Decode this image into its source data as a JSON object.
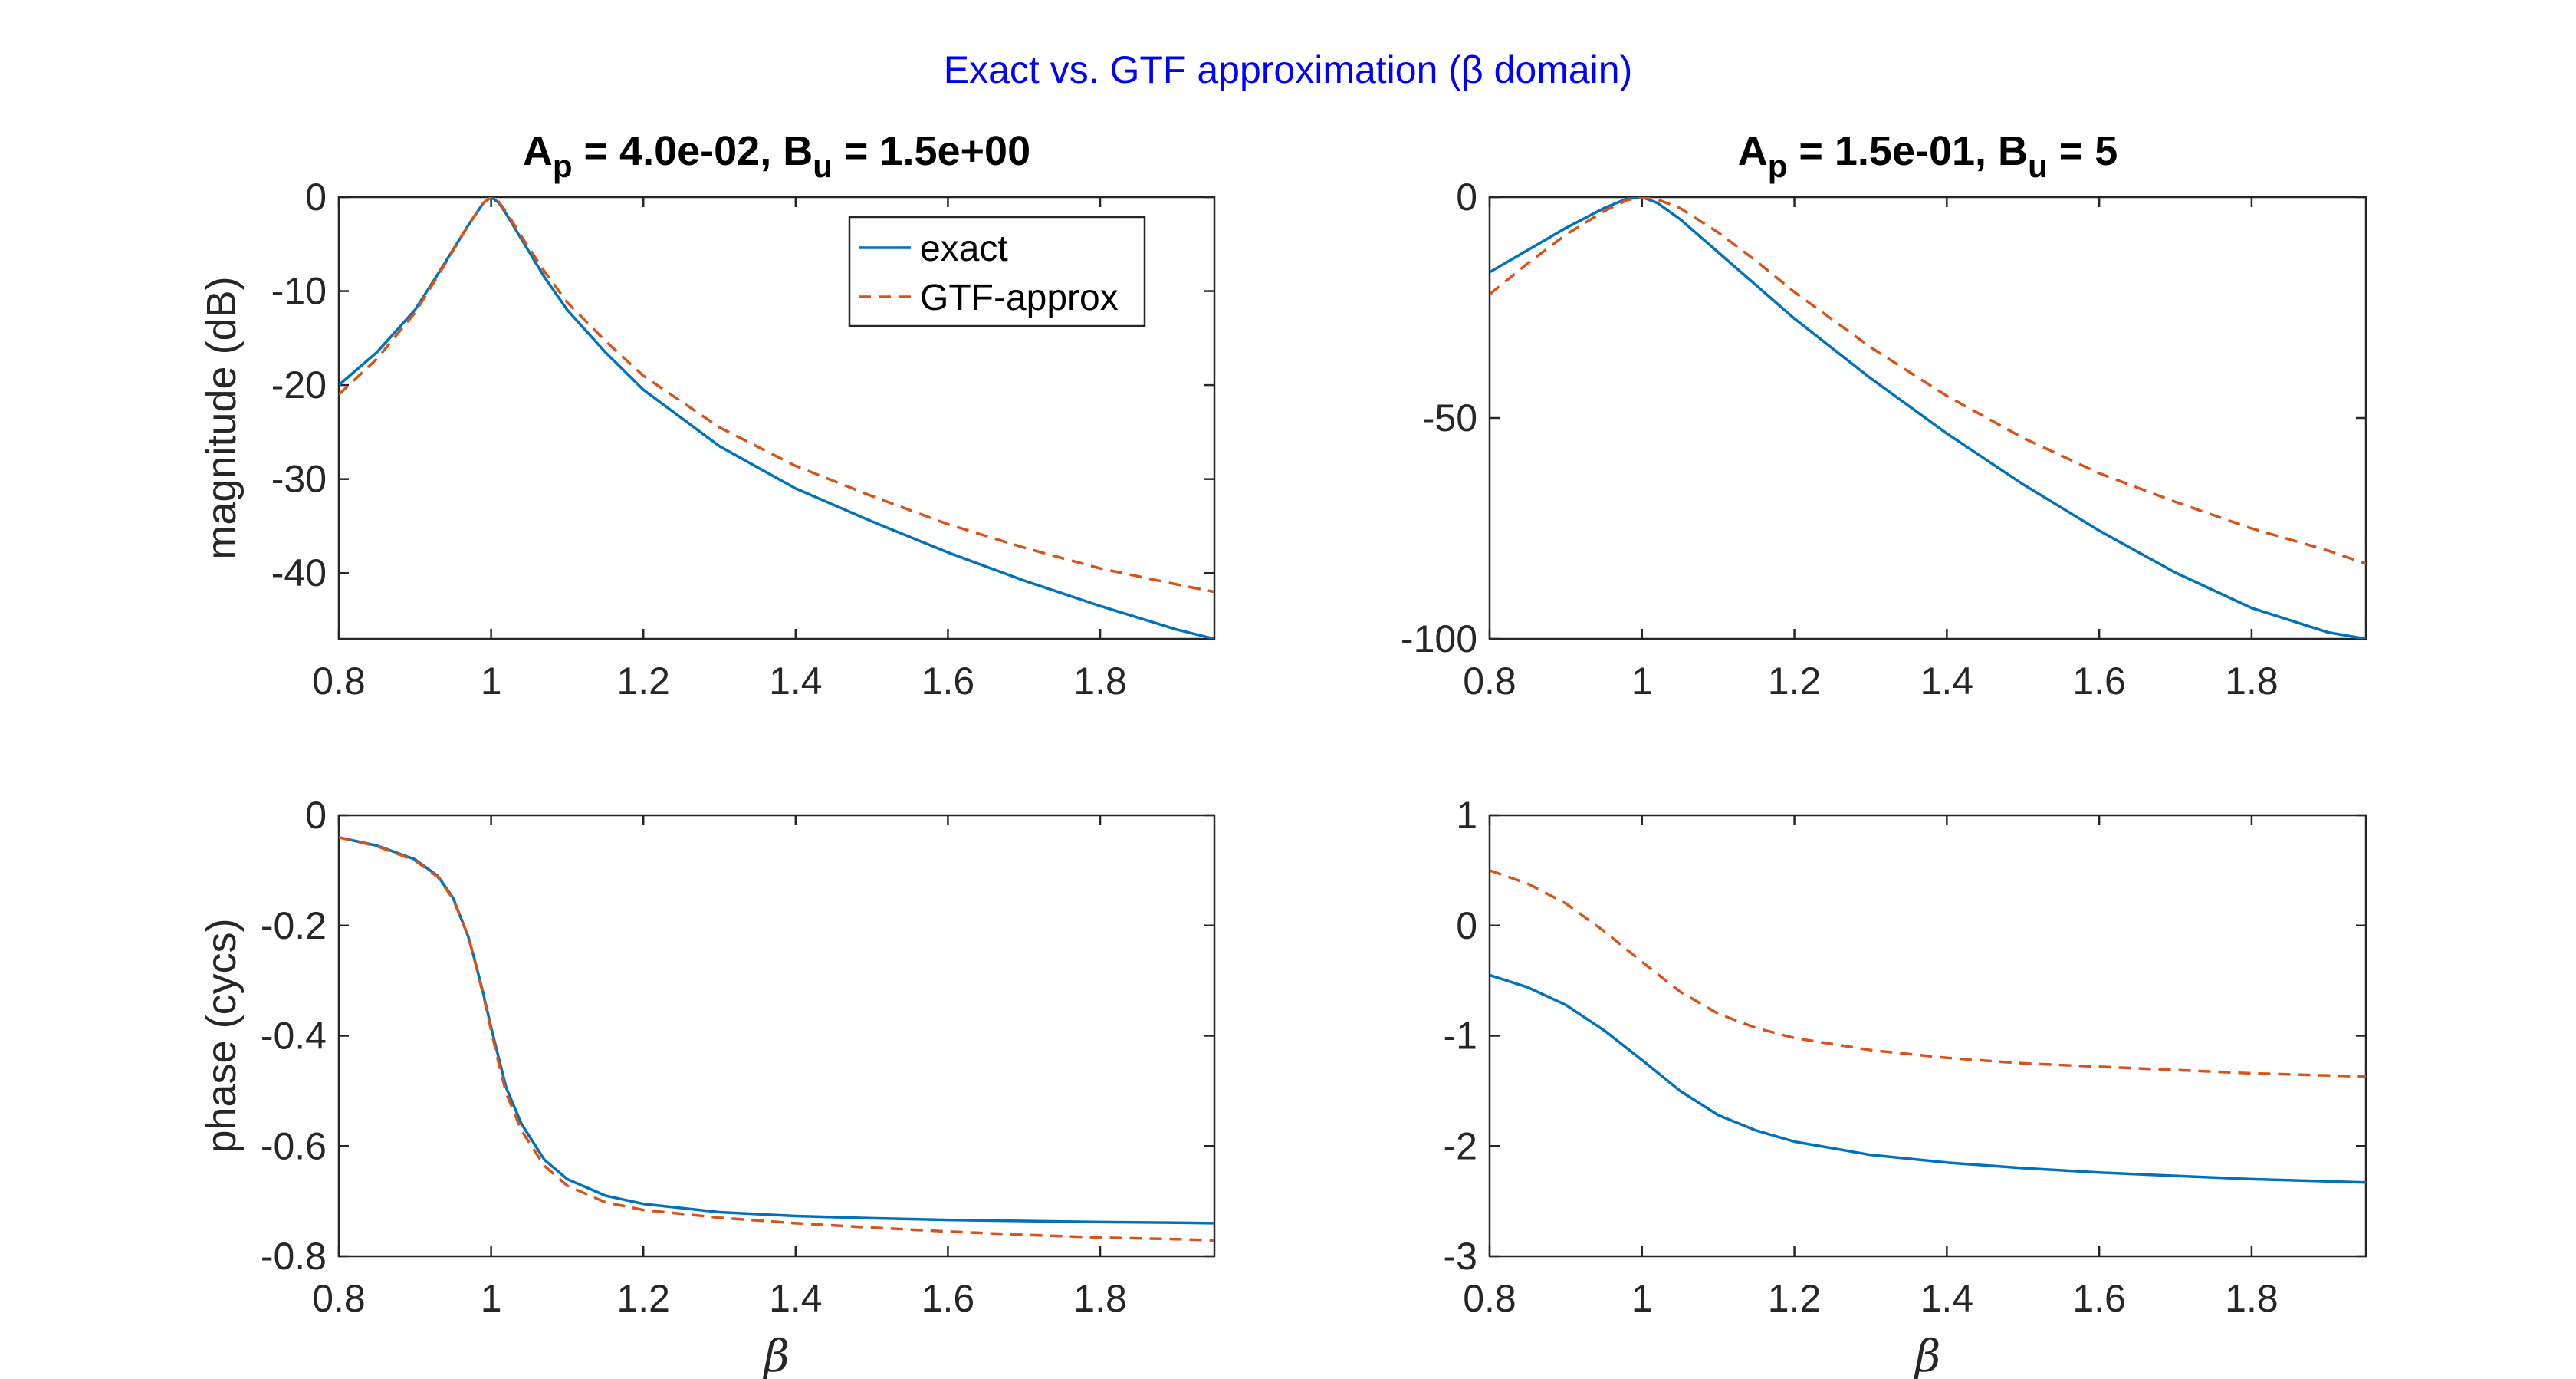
{
  "figure": {
    "suptitle": "Exact vs. GTF approximation (β domain)",
    "suptitle_color": "#0000ff"
  },
  "colors": {
    "exact": "#0072bd",
    "approx": "#d95319",
    "axis": "#262626"
  },
  "legend": {
    "exact_label": "exact",
    "approx_label": "GTF-approx"
  },
  "chart_data": [
    {
      "id": "left-magnitude",
      "type": "line",
      "title_prefix": "A",
      "title_sub1": "p",
      "title_mid": " = 4.0e-02, B",
      "title_sub2": "u",
      "title_suffix": " = 1.5e+00",
      "xlabel": "",
      "ylabel": "magnitude (dB)",
      "xlim": [
        0.8,
        1.95
      ],
      "ylim": [
        -47,
        0
      ],
      "xticks": [
        0.8,
        1,
        1.2,
        1.4,
        1.6,
        1.8
      ],
      "xticklabels": [
        "0.8",
        "1",
        "1.2",
        "1.4",
        "1.6",
        "1.8"
      ],
      "yticks": [
        0,
        -10,
        -20,
        -30,
        -40
      ],
      "yticklabels": [
        "0",
        "-10",
        "-20",
        "-30",
        "-40"
      ],
      "legend_position": "top-right",
      "series": [
        {
          "name": "exact",
          "style": "solid",
          "x": [
            0.8,
            0.85,
            0.9,
            0.93,
            0.95,
            0.97,
            0.98,
            0.99,
            1.0,
            1.01,
            1.02,
            1.04,
            1.07,
            1.1,
            1.15,
            1.2,
            1.3,
            1.4,
            1.5,
            1.6,
            1.7,
            1.8,
            1.9,
            1.95
          ],
          "y": [
            -20,
            -16.5,
            -12,
            -8.2,
            -5.6,
            -3.0,
            -1.8,
            -0.6,
            0,
            -0.6,
            -1.8,
            -4.5,
            -8.5,
            -12,
            -16.5,
            -20.5,
            -26.5,
            -31,
            -34.5,
            -37.8,
            -40.8,
            -43.5,
            -46,
            -47
          ]
        },
        {
          "name": "GTF-approx",
          "style": "dashed",
          "x": [
            0.8,
            0.85,
            0.9,
            0.93,
            0.95,
            0.97,
            0.98,
            0.99,
            1.0,
            1.01,
            1.02,
            1.04,
            1.07,
            1.1,
            1.15,
            1.2,
            1.3,
            1.4,
            1.5,
            1.6,
            1.7,
            1.8,
            1.9,
            1.95
          ],
          "y": [
            -21,
            -17.2,
            -12.3,
            -8.4,
            -5.7,
            -3.0,
            -1.8,
            -0.6,
            0,
            -0.5,
            -1.6,
            -4.2,
            -7.9,
            -11.2,
            -15.3,
            -19,
            -24.5,
            -28.6,
            -31.8,
            -34.8,
            -37.3,
            -39.5,
            -41.2,
            -42
          ]
        }
      ]
    },
    {
      "id": "right-magnitude",
      "type": "line",
      "title_prefix": "A",
      "title_sub1": "p",
      "title_mid": " = 1.5e-01, B",
      "title_sub2": "u",
      "title_suffix": " = 5",
      "xlabel": "",
      "ylabel": "",
      "xlim": [
        0.8,
        1.95
      ],
      "ylim": [
        -100,
        0
      ],
      "xticks": [
        0.8,
        1,
        1.2,
        1.4,
        1.6,
        1.8
      ],
      "xticklabels": [
        "0.8",
        "1",
        "1.2",
        "1.4",
        "1.6",
        "1.8"
      ],
      "yticks": [
        0,
        -50,
        -100
      ],
      "yticklabels": [
        "0",
        "-50",
        "-100"
      ],
      "series": [
        {
          "name": "exact",
          "style": "solid",
          "x": [
            0.8,
            0.85,
            0.9,
            0.95,
            0.98,
            1.0,
            1.02,
            1.05,
            1.1,
            1.15,
            1.2,
            1.3,
            1.4,
            1.5,
            1.6,
            1.7,
            1.8,
            1.9,
            1.95
          ],
          "y": [
            -17,
            -12,
            -7,
            -2.5,
            -0.4,
            0,
            -1.3,
            -5,
            -12.5,
            -20,
            -27.5,
            -41,
            -53.5,
            -65,
            -75.5,
            -85,
            -93,
            -98.5,
            -100
          ]
        },
        {
          "name": "GTF-approx",
          "style": "dashed",
          "x": [
            0.8,
            0.85,
            0.9,
            0.95,
            0.98,
            1.0,
            1.02,
            1.05,
            1.1,
            1.15,
            1.2,
            1.3,
            1.4,
            1.5,
            1.6,
            1.7,
            1.8,
            1.9,
            1.95
          ],
          "y": [
            -22,
            -15,
            -8.5,
            -3.2,
            -0.7,
            0,
            -0.5,
            -2.5,
            -8,
            -14.5,
            -21.5,
            -34,
            -45,
            -54.5,
            -62.5,
            -69,
            -75,
            -80,
            -83
          ]
        }
      ]
    },
    {
      "id": "left-phase",
      "type": "line",
      "xlabel": "β",
      "ylabel": "phase (cycs)",
      "xlim": [
        0.8,
        1.95
      ],
      "ylim": [
        -0.8,
        0
      ],
      "xticks": [
        0.8,
        1,
        1.2,
        1.4,
        1.6,
        1.8
      ],
      "xticklabels": [
        "0.8",
        "1",
        "1.2",
        "1.4",
        "1.6",
        "1.8"
      ],
      "yticks": [
        0,
        -0.2,
        -0.4,
        -0.6,
        -0.8
      ],
      "yticklabels": [
        "0",
        "-0.2",
        "-0.4",
        "-0.6",
        "-0.8"
      ],
      "series": [
        {
          "name": "exact",
          "style": "solid",
          "x": [
            0.8,
            0.85,
            0.9,
            0.93,
            0.95,
            0.97,
            0.98,
            0.99,
            1.0,
            1.01,
            1.02,
            1.04,
            1.07,
            1.1,
            1.15,
            1.2,
            1.3,
            1.4,
            1.5,
            1.6,
            1.7,
            1.8,
            1.9,
            1.95
          ],
          "y": [
            -0.04,
            -0.055,
            -0.08,
            -0.11,
            -0.15,
            -0.22,
            -0.27,
            -0.325,
            -0.385,
            -0.44,
            -0.495,
            -0.56,
            -0.625,
            -0.66,
            -0.69,
            -0.705,
            -0.72,
            -0.727,
            -0.731,
            -0.734,
            -0.736,
            -0.738,
            -0.739,
            -0.74
          ]
        },
        {
          "name": "GTF-approx",
          "style": "dashed",
          "x": [
            0.8,
            0.85,
            0.9,
            0.93,
            0.95,
            0.97,
            0.98,
            0.99,
            1.0,
            1.01,
            1.02,
            1.04,
            1.07,
            1.1,
            1.15,
            1.2,
            1.3,
            1.4,
            1.5,
            1.6,
            1.7,
            1.8,
            1.9,
            1.95
          ],
          "y": [
            -0.04,
            -0.056,
            -0.082,
            -0.112,
            -0.152,
            -0.22,
            -0.272,
            -0.328,
            -0.39,
            -0.45,
            -0.505,
            -0.572,
            -0.636,
            -0.672,
            -0.702,
            -0.716,
            -0.73,
            -0.74,
            -0.748,
            -0.755,
            -0.761,
            -0.766,
            -0.769,
            -0.771
          ]
        }
      ]
    },
    {
      "id": "right-phase",
      "type": "line",
      "xlabel": "β",
      "ylabel": "",
      "xlim": [
        0.8,
        1.95
      ],
      "ylim": [
        -3,
        1
      ],
      "xticks": [
        0.8,
        1,
        1.2,
        1.4,
        1.6,
        1.8
      ],
      "xticklabels": [
        "0.8",
        "1",
        "1.2",
        "1.4",
        "1.6",
        "1.8"
      ],
      "yticks": [
        1,
        0,
        -1,
        -2,
        -3
      ],
      "yticklabels": [
        "1",
        "0",
        "-1",
        "-2",
        "-3"
      ],
      "series": [
        {
          "name": "exact",
          "style": "solid",
          "x": [
            0.8,
            0.85,
            0.9,
            0.95,
            1.0,
            1.05,
            1.1,
            1.15,
            1.2,
            1.3,
            1.4,
            1.5,
            1.6,
            1.7,
            1.8,
            1.9,
            1.95
          ],
          "y": [
            -0.45,
            -0.56,
            -0.72,
            -0.95,
            -1.22,
            -1.5,
            -1.72,
            -1.86,
            -1.96,
            -2.08,
            -2.15,
            -2.2,
            -2.24,
            -2.27,
            -2.3,
            -2.32,
            -2.33
          ]
        },
        {
          "name": "GTF-approx",
          "style": "dashed",
          "x": [
            0.8,
            0.85,
            0.9,
            0.95,
            1.0,
            1.05,
            1.1,
            1.15,
            1.2,
            1.3,
            1.4,
            1.5,
            1.6,
            1.7,
            1.8,
            1.9,
            1.95
          ],
          "y": [
            0.5,
            0.38,
            0.2,
            -0.05,
            -0.33,
            -0.6,
            -0.8,
            -0.93,
            -1.02,
            -1.13,
            -1.2,
            -1.25,
            -1.28,
            -1.31,
            -1.34,
            -1.36,
            -1.37
          ]
        }
      ]
    }
  ]
}
